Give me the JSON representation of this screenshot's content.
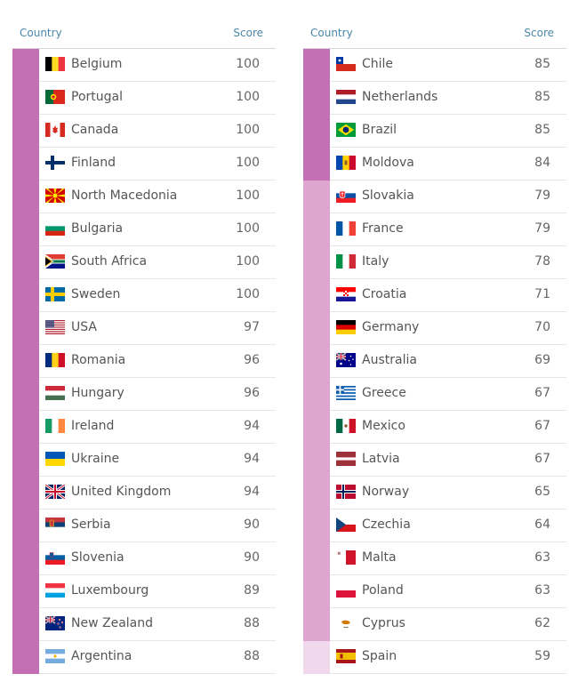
{
  "colors": {
    "band_high": "#c36fb4",
    "band_mid": "#dca6d0",
    "band_low": "#f0d9ec",
    "header_text": "#4a86a8"
  },
  "tables": [
    {
      "header": {
        "country": "Country",
        "score": "Score"
      }
    },
    {
      "header": {
        "country": "Country",
        "score": "Score"
      }
    }
  ],
  "chart_data": {
    "type": "table",
    "columns": [
      "Country",
      "Score"
    ],
    "rows": [
      {
        "country": "Belgium",
        "score": 100,
        "flag": "belgium-flag-icon"
      },
      {
        "country": "Portugal",
        "score": 100,
        "flag": "portugal-flag-icon"
      },
      {
        "country": "Canada",
        "score": 100,
        "flag": "canada-flag-icon"
      },
      {
        "country": "Finland",
        "score": 100,
        "flag": "finland-flag-icon"
      },
      {
        "country": "North Macedonia",
        "score": 100,
        "flag": "north-macedonia-flag-icon"
      },
      {
        "country": "Bulgaria",
        "score": 100,
        "flag": "bulgaria-flag-icon"
      },
      {
        "country": "South Africa",
        "score": 100,
        "flag": "south-africa-flag-icon"
      },
      {
        "country": "Sweden",
        "score": 100,
        "flag": "sweden-flag-icon"
      },
      {
        "country": "USA",
        "score": 97,
        "flag": "usa-flag-icon"
      },
      {
        "country": "Romania",
        "score": 96,
        "flag": "romania-flag-icon"
      },
      {
        "country": "Hungary",
        "score": 96,
        "flag": "hungary-flag-icon"
      },
      {
        "country": "Ireland",
        "score": 94,
        "flag": "ireland-flag-icon"
      },
      {
        "country": "Ukraine",
        "score": 94,
        "flag": "ukraine-flag-icon"
      },
      {
        "country": "United Kingdom",
        "score": 94,
        "flag": "united-kingdom-flag-icon"
      },
      {
        "country": "Serbia",
        "score": 90,
        "flag": "serbia-flag-icon"
      },
      {
        "country": "Slovenia",
        "score": 90,
        "flag": "slovenia-flag-icon"
      },
      {
        "country": "Luxembourg",
        "score": 89,
        "flag": "luxembourg-flag-icon"
      },
      {
        "country": "New Zealand",
        "score": 88,
        "flag": "new-zealand-flag-icon"
      },
      {
        "country": "Argentina",
        "score": 88,
        "flag": "argentina-flag-icon"
      },
      {
        "country": "Chile",
        "score": 85,
        "flag": "chile-flag-icon"
      },
      {
        "country": "Netherlands",
        "score": 85,
        "flag": "netherlands-flag-icon"
      },
      {
        "country": "Brazil",
        "score": 85,
        "flag": "brazil-flag-icon"
      },
      {
        "country": "Moldova",
        "score": 84,
        "flag": "moldova-flag-icon"
      },
      {
        "country": "Slovakia",
        "score": 79,
        "flag": "slovakia-flag-icon"
      },
      {
        "country": "France",
        "score": 79,
        "flag": "france-flag-icon"
      },
      {
        "country": "Italy",
        "score": 78,
        "flag": "italy-flag-icon"
      },
      {
        "country": "Croatia",
        "score": 71,
        "flag": "croatia-flag-icon"
      },
      {
        "country": "Germany",
        "score": 70,
        "flag": "germany-flag-icon"
      },
      {
        "country": "Australia",
        "score": 69,
        "flag": "australia-flag-icon"
      },
      {
        "country": "Greece",
        "score": 67,
        "flag": "greece-flag-icon"
      },
      {
        "country": "Mexico",
        "score": 67,
        "flag": "mexico-flag-icon"
      },
      {
        "country": "Latvia",
        "score": 67,
        "flag": "latvia-flag-icon"
      },
      {
        "country": "Norway",
        "score": 65,
        "flag": "norway-flag-icon"
      },
      {
        "country": "Czechia",
        "score": 64,
        "flag": "czechia-flag-icon"
      },
      {
        "country": "Malta",
        "score": 63,
        "flag": "malta-flag-icon"
      },
      {
        "country": "Poland",
        "score": 63,
        "flag": "poland-flag-icon"
      },
      {
        "country": "Cyprus",
        "score": 62,
        "flag": "cyprus-flag-icon"
      },
      {
        "country": "Spain",
        "score": 59,
        "flag": "spain-flag-icon"
      }
    ]
  }
}
